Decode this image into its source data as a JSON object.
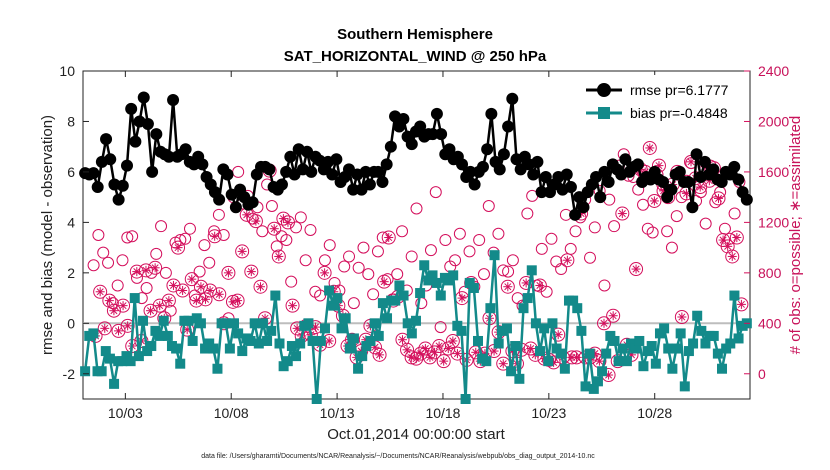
{
  "chart_data": {
    "type": "line",
    "title": "Southern Hemisphere",
    "subtitle": "SAT_HORIZONTAL_WIND @ 250 hPa",
    "xlabel": "Oct.01,2014 00:00:00 start",
    "ylabel": "rmse and bias (model - observation)",
    "ylabel_right": "# of obs: o=possible; ∗=assimilated",
    "footnote": "data file: /Users/gharamti/Documents/NCAR/Reanalysis/~/Documents/NCAR/Reanalysis/webpub/obs_diag_output_2014-10.nc",
    "x_range_days": [
      1,
      32.5
    ],
    "ylim": [
      -3,
      10
    ],
    "ylim_right": [
      -200,
      2400
    ],
    "x_ticks": [
      {
        "day": 3,
        "label": "10/03"
      },
      {
        "day": 8,
        "label": "10/08"
      },
      {
        "day": 13,
        "label": "10/13"
      },
      {
        "day": 18,
        "label": "10/18"
      },
      {
        "day": 23,
        "label": "10/23"
      },
      {
        "day": 28,
        "label": "10/28"
      }
    ],
    "y_ticks": [
      "-2",
      "0",
      "2",
      "4",
      "6",
      "8",
      "10"
    ],
    "y_ticks_right": [
      "0",
      "400",
      "800",
      "1200",
      "1600",
      "2000",
      "2400"
    ],
    "legend": {
      "position": "top-right",
      "entries": [
        "rmse pr=6.1777",
        "bias pr=-0.4848"
      ]
    },
    "colors": {
      "rmse": "#000000",
      "bias": "#138a8a",
      "obs": "#d40f5c",
      "zero_line": "#bdbdbd"
    },
    "series": [
      {
        "name": "rmse pr=6.1777",
        "axis": "left",
        "marker": "filled-circle",
        "values": [
          5.95,
          5.9,
          5.95,
          5.4,
          6.4,
          7.3,
          6.5,
          5.5,
          4.9,
          5.45,
          6.25,
          8.5,
          7.2,
          8.0,
          8.95,
          7.9,
          6.0,
          7.5,
          6.8,
          6.7,
          6.6,
          8.85,
          6.6,
          6.7,
          6.9,
          6.4,
          6.3,
          6.6,
          6.3,
          5.8,
          5.5,
          5.2,
          4.9,
          6.1,
          5.9,
          5.1,
          4.6,
          5.3,
          5.0,
          4.7,
          4.8,
          5.9,
          6.2,
          6.2,
          6.1,
          5.4,
          5.3,
          5.5,
          6.0,
          6.6,
          5.9,
          6.9,
          6.1,
          6.8,
          6.0,
          6.6,
          6.45,
          6.1,
          6.4,
          5.9,
          6.5,
          5.6,
          5.8,
          6.1,
          5.3,
          5.9,
          5.3,
          6.0,
          5.5,
          6.0,
          6.0,
          5.6,
          6.3,
          7.0,
          8.2,
          7.8,
          8.1,
          7.4,
          7.1,
          7.6,
          7.8,
          7.4,
          7.5,
          7.5,
          8.3,
          7.5,
          6.7,
          6.9,
          6.5,
          6.6,
          6.3,
          5.8,
          6.0,
          5.5,
          6.0,
          6.2,
          6.9,
          8.3,
          6.4,
          6.1,
          6.7,
          7.8,
          8.9,
          6.5,
          6.1,
          6.6,
          6.3,
          5.9,
          6.4,
          5.2,
          5.8,
          5.2,
          5.5,
          5.8,
          5.3,
          5.9,
          5.4,
          4.3,
          5.0,
          4.6,
          5.2,
          5.5,
          5.8,
          5.0,
          6.0,
          5.6,
          6.3,
          6.1,
          5.9,
          6.5,
          6.0,
          6.2,
          6.3,
          5.6,
          5.8,
          5.7,
          6.0,
          5.7,
          5.6,
          5.0,
          5.3,
          5.9,
          6.0,
          5.6,
          5.6,
          4.6,
          6.7,
          5.8,
          6.4,
          5.9,
          6.1,
          5.7,
          5.6,
          6.0,
          5.9,
          6.2,
          5.7,
          5.2,
          4.9
        ]
      },
      {
        "name": "bias pr=-0.4848",
        "axis": "left",
        "marker": "filled-square",
        "values": [
          -1.9,
          -0.5,
          -0.4,
          -1.9,
          -1.9,
          -1.1,
          -1.4,
          -2.4,
          -1.5,
          -1.5,
          -1.3,
          -1.5,
          1.0,
          -1.3,
          0.1,
          -1.1,
          -0.9,
          -0.3,
          -0.5,
          0.1,
          -0.5,
          -0.9,
          -1.0,
          -1.6,
          0.1,
          0.1,
          -0.7,
          0.2,
          0.0,
          -1.0,
          -0.8,
          -1.0,
          -1.8,
          0.0,
          0.0,
          -1.0,
          0.0,
          -0.4,
          -1.1,
          -0.6,
          -0.7,
          0.0,
          -0.8,
          0.0,
          -0.7,
          -0.3,
          1.1,
          -0.8,
          -1.7,
          -1.5,
          -0.9,
          -1.3,
          -0.8,
          -0.1,
          0.0,
          -0.7,
          -3.0,
          -0.7,
          -0.2,
          1.3,
          0.7,
          1.0,
          -0.2,
          0.2,
          -1.0,
          -0.6,
          -1.8,
          -1.3,
          -0.9,
          -0.7,
          0.0,
          -0.5,
          0.8,
          0.2,
          0.9,
          0.9,
          1.5,
          1.1,
          0.0,
          -0.4,
          0.1,
          1.2,
          2.3,
          1.7,
          1.9,
          1.6,
          1.1,
          1.8,
          1.7,
          1.9,
          -0.1,
          -0.3,
          -3.0,
          1.6,
          1.4,
          -0.7,
          -1.4,
          -1.5,
          0.6,
          2.7,
          -0.8,
          -0.3,
          -0.2,
          -1.9,
          -0.9,
          -2.2,
          0.6,
          1.0,
          2.1,
          0.0,
          -1.1,
          -0.2,
          -1.5,
          0.0,
          -1.0,
          -1.2,
          -1.8,
          0.9,
          0.9,
          0.6,
          -0.3,
          -2.5,
          -1.2,
          -2.6,
          -2.3,
          -1.9,
          -1.2,
          -0.5,
          -0.7,
          -1.5,
          -1.0,
          -1.5,
          -0.8,
          -1.0,
          -0.7,
          -1.7,
          -1.1,
          -0.9,
          -1.6,
          -0.4,
          -0.2,
          -1.0,
          -1.8,
          -1.0,
          -0.4,
          -2.5,
          -1.1,
          -0.8,
          0.3,
          -0.3,
          -0.8,
          -0.5,
          -0.5,
          -1.2,
          -1.8,
          -1.0,
          -0.8,
          1.1,
          -0.6,
          -0.1,
          0.0
        ]
      },
      {
        "name": "possible",
        "axis": "right",
        "marker": "open-circle",
        "values": [
          860,
          1100,
          960,
          880,
          560,
          700,
          900,
          1080,
          1090,
          760,
          600,
          680,
          800,
          950,
          1170,
          800,
          500,
          1040,
          1060,
          1070,
          1150,
          620,
          810,
          1020,
          880,
          1130,
          1260,
          1100,
          440,
          1400,
          1600,
          1350,
          1410,
          1230,
          1320,
          1130,
          1500,
          1330,
          1010,
          1090,
          1060,
          730,
          1160,
          1240,
          900,
          1140,
          650,
          620,
          900,
          1020,
          720,
          660,
          850,
          930,
          560,
          840,
          1000,
          790,
          630,
          970,
          1080,
          750,
          590,
          790,
          1130,
          660,
          930,
          1310,
          560,
          700,
          980,
          1440,
          370,
          1060,
          850,
          900,
          1110,
          650,
          970,
          690,
          1060,
          790,
          1330,
          960,
          1110,
          820,
          810,
          900,
          600,
          540,
          1270,
          1410,
          700,
          990,
          650,
          1070,
          890,
          830,
          1260,
          990,
          1130,
          1240,
          1380,
          920,
          1160,
          1450,
          700,
          1380,
          1170,
          1650,
          1740,
          1570,
          1560,
          1460,
          1340,
          1150,
          1120,
          1580,
          1500,
          1130,
          1000,
          1250,
          1400,
          1530,
          1670,
          1370,
          1440,
          1190,
          1650,
          1360,
          1440,
          1150,
          1070,
          1270,
          1520
        ]
      },
      {
        "name": "assimilated",
        "axis": "right",
        "marker": "star",
        "values": [
          300,
          650,
          360,
          580,
          500,
          340,
          540,
          380,
          220,
          810,
          260,
          820,
          500,
          840,
          540,
          440,
          580,
          700,
          1000,
          660,
          350,
          750,
          580,
          690,
          590,
          660,
          1090,
          630,
          400,
          800,
          570,
          580,
          970,
          1260,
          810,
          1210,
          690,
          440,
          1610,
          1150,
          930,
          1230,
          1200,
          540,
          360,
          300,
          380,
          310,
          370,
          230,
          800,
          260,
          650,
          540,
          460,
          220,
          270,
          130,
          180,
          270,
          380,
          210,
          150,
          730,
          1080,
          580,
          610,
          270,
          190,
          130,
          120,
          160,
          200,
          130,
          170,
          220,
          100,
          200,
          260,
          160,
          600,
          110,
          720,
          170,
          100,
          160,
          440,
          180,
          330,
          80,
          690,
          180,
          80,
          190,
          720,
          200,
          150,
          700,
          120,
          110,
          90,
          310,
          130,
          900,
          130,
          130,
          1270,
          130,
          130,
          160,
          100,
          400,
          -10,
          460,
          100,
          1270,
          230,
          150,
          830,
          1620,
          1600,
          1790,
          1370,
          1650,
          1450,
          1400,
          1500,
          1600,
          450,
          1430,
          1680,
          1550,
          1480,
          1640,
          1530,
          1630,
          1390,
          1060,
          1010,
          930,
          1080,
          550
        ]
      }
    ]
  }
}
